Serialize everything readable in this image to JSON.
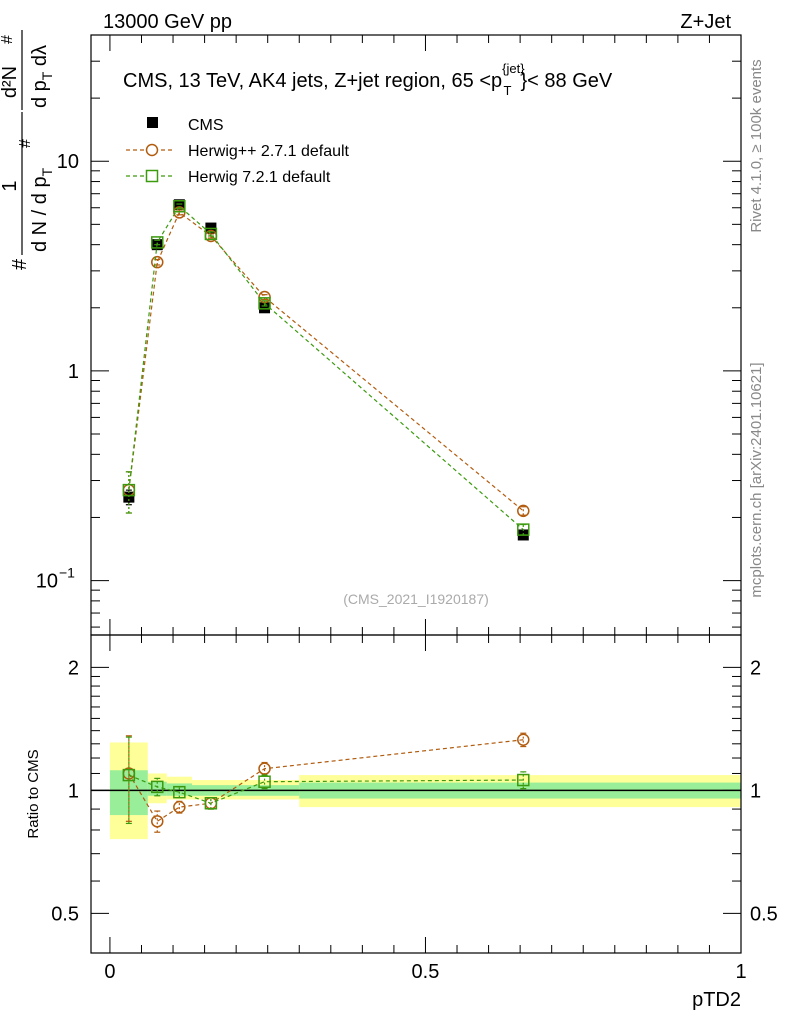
{
  "header": {
    "energy_label": "13000 GeV pp",
    "process_label": "Z+Jet"
  },
  "side_labels": {
    "rivet": "Rivet 4.1.0, ≥ 100k events",
    "mcplots": "mcplots.cern.ch [arXiv:2401.10621]"
  },
  "chart_data": [
    {
      "type": "line",
      "title_pre": "CMS, 13 TeV, AK4 jets, Z+jet region, 65 <p",
      "title_sup": "{jet}",
      "title_sub": "T",
      "title_post": "}< 88 GeV",
      "watermark": "(CMS_2021_I1920187)",
      "ylabel": {
        "lead": "#",
        "frac1_num": "1",
        "frac1_den": "d N / d p",
        "frac1_den_sub": "T",
        "frac2_num": "d²N",
        "frac2_den": "d p",
        "frac2_den_sub": "T",
        "frac2_den_tail": " dλ",
        "hash_mid": "#",
        "hash_top": "#"
      },
      "xlim": [
        -0.03,
        1.0
      ],
      "ylim": [
        0.055,
        40
      ],
      "yscale": "log",
      "yticks": [
        {
          "value": 10,
          "label": "10"
        },
        {
          "value": 1,
          "label": "1"
        },
        {
          "value": 0.1,
          "label_base": "10",
          "label_exp": "−1"
        }
      ],
      "legend": [
        {
          "name": "CMS",
          "marker": "square-filled",
          "color": "#000000"
        },
        {
          "name": "Herwig++ 2.7.1 default",
          "marker": "circle-open",
          "color": "#b25c0f"
        },
        {
          "name": "Herwig 7.2.1 default",
          "marker": "square-open",
          "color": "#3c9a0f"
        }
      ],
      "series": [
        {
          "name": "CMS",
          "color": "#000000",
          "x": [
            0.03,
            0.075,
            0.11,
            0.16,
            0.245,
            0.655
          ],
          "values": [
            0.25,
            4.0,
            6.2,
            4.8,
            2.0,
            0.165
          ],
          "err": [
            0.02,
            0.1,
            0.15,
            0.1,
            0.05,
            0.005
          ]
        },
        {
          "name": "Herwig++ 2.7.1 default",
          "color": "#b25c0f",
          "x": [
            0.03,
            0.075,
            0.11,
            0.16,
            0.245,
            0.655
          ],
          "values": [
            0.27,
            3.3,
            5.7,
            4.4,
            2.25,
            0.215
          ],
          "err": [
            0.06,
            0.1,
            0.15,
            0.1,
            0.06,
            0.01
          ]
        },
        {
          "name": "Herwig 7.2.1 default",
          "color": "#3c9a0f",
          "x": [
            0.03,
            0.075,
            0.11,
            0.16,
            0.245,
            0.655
          ],
          "values": [
            0.27,
            4.1,
            6.1,
            4.5,
            2.1,
            0.175
          ],
          "err": [
            0.06,
            0.1,
            0.15,
            0.1,
            0.06,
            0.01
          ]
        }
      ]
    },
    {
      "type": "line",
      "ylabel": "Ratio to CMS",
      "xlabel": "pTD2",
      "xlim": [
        -0.03,
        1.0
      ],
      "ylim": [
        0.4,
        2.4
      ],
      "yscale": "log",
      "yticks": [
        {
          "value": 2,
          "label": "2"
        },
        {
          "value": 1,
          "label": "1"
        },
        {
          "value": 0.5,
          "label": "0.5"
        }
      ],
      "xticks": [
        {
          "value": 0,
          "label": "0"
        },
        {
          "value": 0.5,
          "label": "0.5"
        },
        {
          "value": 1,
          "label": "1"
        }
      ],
      "bands": [
        {
          "x0": 0.0,
          "x1": 0.06,
          "y_lo": 0.76,
          "y_hi": 1.31,
          "color": "#ffff99"
        },
        {
          "x0": 0.06,
          "x1": 0.09,
          "y_lo": 0.93,
          "y_hi": 1.1,
          "color": "#ffff99"
        },
        {
          "x0": 0.09,
          "x1": 0.13,
          "y_lo": 0.95,
          "y_hi": 1.08,
          "color": "#ffff99"
        },
        {
          "x0": 0.13,
          "x1": 0.2,
          "y_lo": 0.95,
          "y_hi": 1.06,
          "color": "#ffff99"
        },
        {
          "x0": 0.2,
          "x1": 0.3,
          "y_lo": 0.95,
          "y_hi": 1.06,
          "color": "#ffff99"
        },
        {
          "x0": 0.3,
          "x1": 1.0,
          "y_lo": 0.91,
          "y_hi": 1.09,
          "color": "#ffff99"
        },
        {
          "x0": 0.0,
          "x1": 0.06,
          "y_lo": 0.87,
          "y_hi": 1.12,
          "color": "#99ee99"
        },
        {
          "x0": 0.06,
          "x1": 0.09,
          "y_lo": 0.97,
          "y_hi": 1.05,
          "color": "#99ee99"
        },
        {
          "x0": 0.09,
          "x1": 0.13,
          "y_lo": 0.97,
          "y_hi": 1.04,
          "color": "#99ee99"
        },
        {
          "x0": 0.13,
          "x1": 0.2,
          "y_lo": 0.97,
          "y_hi": 1.03,
          "color": "#99ee99"
        },
        {
          "x0": 0.2,
          "x1": 0.3,
          "y_lo": 0.97,
          "y_hi": 1.03,
          "color": "#99ee99"
        },
        {
          "x0": 0.3,
          "x1": 1.0,
          "y_lo": 0.955,
          "y_hi": 1.045,
          "color": "#99ee99"
        }
      ],
      "series": [
        {
          "name": "Herwig++ 2.7.1 default",
          "color": "#b25c0f",
          "x": [
            0.03,
            0.075,
            0.11,
            0.16,
            0.245,
            0.655
          ],
          "values": [
            1.1,
            0.84,
            0.91,
            0.93,
            1.13,
            1.33
          ],
          "err": [
            0.26,
            0.05,
            0.03,
            0.03,
            0.04,
            0.05
          ]
        },
        {
          "name": "Herwig 7.2.1 default",
          "color": "#3c9a0f",
          "x": [
            0.03,
            0.075,
            0.11,
            0.16,
            0.245,
            0.655
          ],
          "values": [
            1.09,
            1.02,
            0.99,
            0.93,
            1.05,
            1.06
          ],
          "err": [
            0.26,
            0.05,
            0.03,
            0.03,
            0.04,
            0.05
          ]
        }
      ]
    }
  ]
}
